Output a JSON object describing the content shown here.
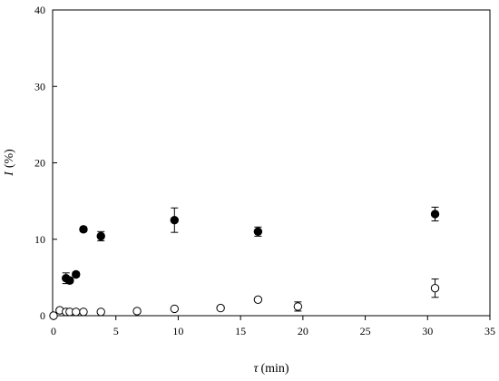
{
  "chart_data": {
    "type": "scatter",
    "xlabel_symbol": "τ",
    "xlabel_unit": "(min)",
    "ylabel_symbol": "I",
    "ylabel_unit": "(%)",
    "xlim": [
      0,
      35
    ],
    "ylim": [
      0,
      40
    ],
    "xticks": [
      0,
      5,
      10,
      15,
      20,
      25,
      30,
      35
    ],
    "yticks": [
      0,
      10,
      20,
      30,
      40
    ],
    "grid": false,
    "series": [
      {
        "marker": "filled-circle",
        "color": "#000000",
        "points": [
          {
            "x": 1.0,
            "y": 4.9,
            "err": 0.7
          },
          {
            "x": 1.3,
            "y": 4.6,
            "err": 0.3
          },
          {
            "x": 1.8,
            "y": 5.4,
            "err": 0.3
          },
          {
            "x": 2.4,
            "y": 11.3,
            "err": 0.3
          },
          {
            "x": 3.8,
            "y": 10.4,
            "err": 0.6
          },
          {
            "x": 9.7,
            "y": 12.5,
            "err": 1.6
          },
          {
            "x": 16.4,
            "y": 11.0,
            "err": 0.6
          },
          {
            "x": 30.6,
            "y": 13.3,
            "err": 0.9
          }
        ]
      },
      {
        "marker": "open-circle",
        "color": "#000000",
        "points": [
          {
            "x": 0.0,
            "y": 0.0,
            "err": 0.0
          },
          {
            "x": 0.5,
            "y": 0.7,
            "err": 0.0
          },
          {
            "x": 1.0,
            "y": 0.5,
            "err": 0.0
          },
          {
            "x": 1.3,
            "y": 0.5,
            "err": 0.0
          },
          {
            "x": 1.8,
            "y": 0.5,
            "err": 0.0
          },
          {
            "x": 2.4,
            "y": 0.5,
            "err": 0.0
          },
          {
            "x": 3.8,
            "y": 0.5,
            "err": 0.0
          },
          {
            "x": 6.7,
            "y": 0.6,
            "err": 0.0
          },
          {
            "x": 9.7,
            "y": 0.9,
            "err": 0.0
          },
          {
            "x": 13.4,
            "y": 1.0,
            "err": 0.0
          },
          {
            "x": 16.4,
            "y": 2.1,
            "err": 0.0
          },
          {
            "x": 19.6,
            "y": 1.2,
            "err": 0.6
          },
          {
            "x": 30.6,
            "y": 3.6,
            "err": 1.2
          }
        ]
      }
    ]
  }
}
